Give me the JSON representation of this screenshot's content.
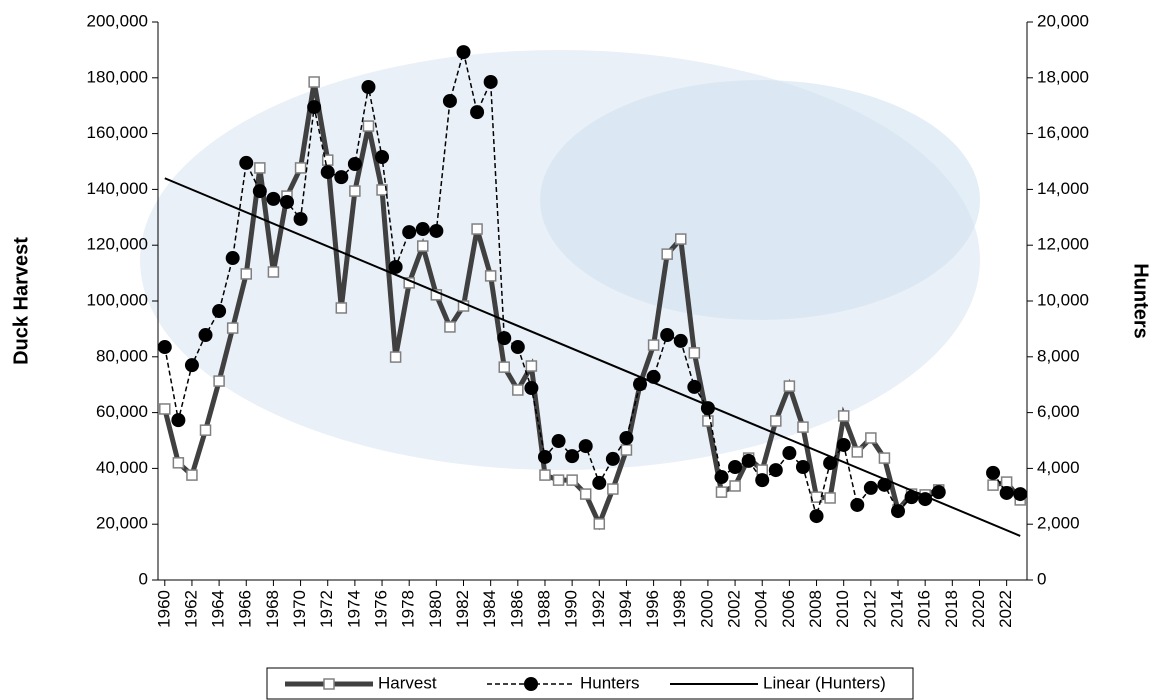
{
  "chart_data": {
    "type": "line",
    "ylabel": "Duck Harvest",
    "y2label": "Hunters",
    "x": [
      1960,
      1961,
      1962,
      1963,
      1964,
      1965,
      1966,
      1967,
      1968,
      1969,
      1970,
      1971,
      1972,
      1973,
      1974,
      1975,
      1976,
      1977,
      1978,
      1979,
      1980,
      1981,
      1982,
      1983,
      1984,
      1985,
      1986,
      1987,
      1988,
      1989,
      1990,
      1991,
      1992,
      1993,
      1994,
      1995,
      1996,
      1997,
      1998,
      1999,
      2000,
      2001,
      2002,
      2003,
      2004,
      2005,
      2006,
      2007,
      2008,
      2009,
      2010,
      2011,
      2012,
      2013,
      2014,
      2015,
      2016,
      2017,
      2018,
      2019,
      2020,
      2021,
      2022,
      2023
    ],
    "series": [
      {
        "name": "Harvest",
        "color": "#404040",
        "marker": "square",
        "axis": "y",
        "values": [
          61300,
          42000,
          37600,
          53700,
          71300,
          90300,
          109700,
          147700,
          110400,
          137600,
          147700,
          178500,
          150500,
          97500,
          139400,
          162700,
          139800,
          79900,
          106500,
          119700,
          102200,
          90700,
          98200,
          125800,
          109000,
          76300,
          68100,
          76700,
          37600,
          35800,
          35800,
          30800,
          20100,
          32600,
          46600,
          70200,
          84200,
          116800,
          122200,
          81400,
          57000,
          31500,
          33700,
          43700,
          39400,
          57000,
          69500,
          54800,
          29700,
          29400,
          58800,
          45900,
          50900,
          43700,
          25100,
          30800,
          30500,
          32300,
          null,
          null,
          null,
          34000,
          35100,
          28700
        ]
      },
      {
        "name": "Hunters",
        "color": "#000000",
        "marker": "circle",
        "dash": true,
        "axis": "y2",
        "values": [
          8350,
          5730,
          7700,
          8780,
          9640,
          11540,
          14950,
          13940,
          13660,
          13550,
          12940,
          16950,
          14620,
          14440,
          14910,
          17670,
          15160,
          11220,
          12470,
          12580,
          12510,
          17170,
          18920,
          16770,
          17850,
          8670,
          8350,
          6880,
          4410,
          4980,
          4440,
          4800,
          3480,
          4340,
          5090,
          7020,
          7280,
          8780,
          8570,
          6920,
          6160,
          3690,
          4050,
          4270,
          3580,
          3940,
          4550,
          4050,
          2290,
          4190,
          4840,
          2690,
          3300,
          3410,
          2470,
          2970,
          2900,
          3150,
          null,
          null,
          null,
          3840,
          3120,
          3080
        ]
      },
      {
        "name": "Linear (Hunters)",
        "color": "#000000",
        "marker": "none",
        "axis": "y2",
        "x": [
          1960,
          2023
        ],
        "values": [
          14400,
          1580
        ]
      }
    ],
    "xlim": [
      1959.5,
      2023.5
    ],
    "xticks": [
      1960,
      1962,
      1964,
      1966,
      1968,
      1970,
      1972,
      1974,
      1976,
      1978,
      1980,
      1982,
      1984,
      1986,
      1988,
      1990,
      1992,
      1994,
      1996,
      1998,
      2000,
      2002,
      2004,
      2006,
      2008,
      2010,
      2012,
      2014,
      2016,
      2018,
      2020,
      2022
    ],
    "ylim": [
      0,
      200000
    ],
    "yticks": [
      0,
      {
        "value": 20000,
        "label": "20,000"
      },
      {
        "value": 40000,
        "label": "40,000"
      },
      {
        "value": 60000,
        "label": "60,000"
      },
      {
        "value": 80000,
        "label": "80,000"
      },
      {
        "value": 100000,
        "label": "100,000"
      },
      {
        "value": 120000,
        "label": "120,000"
      },
      {
        "value": 140000,
        "label": "140,000"
      },
      {
        "value": 160000,
        "label": "160,000"
      },
      {
        "value": 180000,
        "label": "180,000"
      },
      {
        "value": 200000,
        "label": "200,000"
      }
    ],
    "y2lim": [
      0,
      20000
    ],
    "y2ticks": [
      0,
      {
        "value": 2000,
        "label": "2,000"
      },
      {
        "value": 4000,
        "label": "4,000"
      },
      {
        "value": 6000,
        "label": "6,000"
      },
      {
        "value": 8000,
        "label": "8,000"
      },
      {
        "value": 10000,
        "label": "10,000"
      },
      {
        "value": 12000,
        "label": "12,000"
      },
      {
        "value": 14000,
        "label": "14,000"
      },
      {
        "value": 16000,
        "label": "16,000"
      },
      {
        "value": 18000,
        "label": "18,000"
      },
      {
        "value": 20000,
        "label": "20,000"
      }
    ],
    "legend": "bottom"
  }
}
